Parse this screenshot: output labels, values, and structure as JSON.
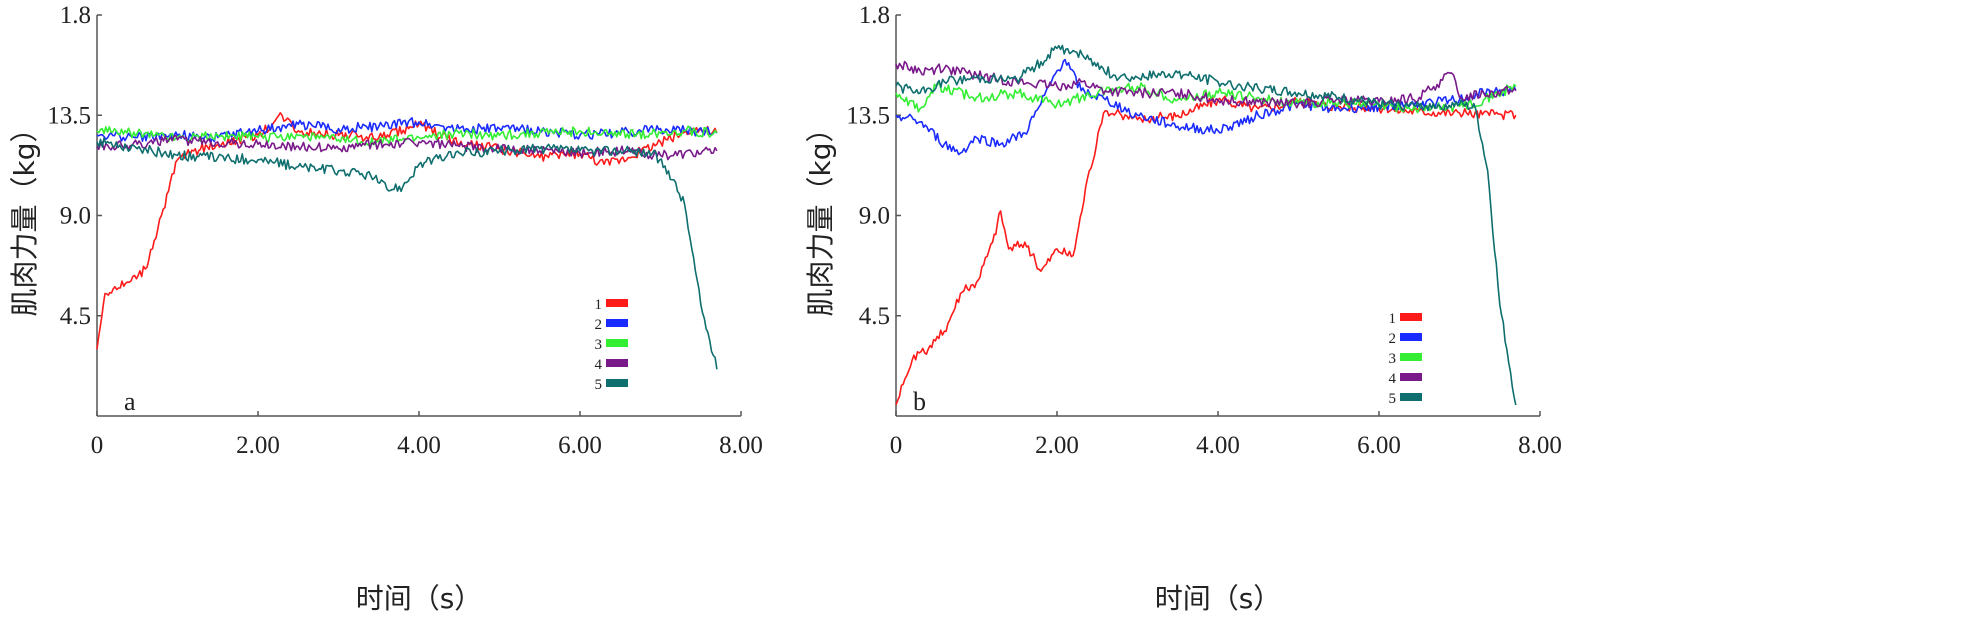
{
  "colors": {
    "1": "#ff1a1a",
    "2": "#1a2bff",
    "3": "#33ee33",
    "4": "#7a1a8a",
    "5": "#0f6e6e"
  },
  "chart_data": [
    {
      "type": "line",
      "panel_label": "a",
      "xlabel": "时间（s）",
      "ylabel": "肌肉力量（kg）",
      "xlim": [
        0,
        8
      ],
      "ylim": [
        0,
        18
      ],
      "x_ticks": [
        "0",
        "2.00",
        "4.00",
        "6.00",
        "8.00"
      ],
      "y_ticks": [
        "4.5",
        "9.0",
        "13.5",
        "1.8"
      ],
      "legend_position": "lower-right",
      "series": [
        {
          "name": "1",
          "x": [
            0.0,
            0.1,
            0.2,
            0.4,
            0.6,
            0.8,
            1.0,
            1.2,
            1.5,
            2.0,
            2.3,
            2.5,
            3.0,
            3.5,
            4.0,
            4.5,
            5.0,
            5.5,
            6.0,
            6.3,
            6.6,
            7.0,
            7.4,
            7.7
          ],
          "y": [
            3.0,
            5.5,
            5.7,
            6.0,
            6.6,
            9.0,
            11.5,
            11.9,
            12.2,
            12.6,
            13.5,
            12.8,
            12.6,
            12.5,
            13.1,
            12.2,
            12.0,
            11.6,
            11.8,
            11.3,
            11.6,
            12.3,
            12.9,
            12.7
          ]
        },
        {
          "name": "2",
          "x": [
            0.0,
            0.5,
            1.0,
            1.5,
            2.0,
            2.5,
            3.0,
            3.5,
            4.0,
            4.5,
            5.0,
            5.5,
            6.0,
            6.5,
            7.0,
            7.3,
            7.7
          ],
          "y": [
            12.6,
            12.5,
            12.6,
            12.5,
            12.8,
            13.1,
            12.9,
            13.0,
            13.2,
            12.9,
            12.9,
            12.8,
            12.6,
            12.7,
            12.9,
            12.8,
            12.7
          ]
        },
        {
          "name": "3",
          "x": [
            0.0,
            0.5,
            1.0,
            1.5,
            2.0,
            2.5,
            3.0,
            3.5,
            4.0,
            4.5,
            5.0,
            5.5,
            6.0,
            6.5,
            7.0,
            7.3,
            7.7
          ],
          "y": [
            12.8,
            12.7,
            12.5,
            12.6,
            12.5,
            12.6,
            12.4,
            12.3,
            12.5,
            12.7,
            12.6,
            12.7,
            12.8,
            12.6,
            12.7,
            12.8,
            12.7
          ]
        },
        {
          "name": "4",
          "x": [
            0.0,
            0.5,
            1.0,
            1.5,
            2.0,
            2.5,
            3.0,
            3.5,
            4.0,
            4.5,
            5.0,
            5.5,
            6.0,
            6.5,
            7.0,
            7.3,
            7.7
          ],
          "y": [
            12.1,
            12.2,
            12.4,
            12.3,
            12.2,
            12.1,
            12.0,
            12.2,
            12.3,
            12.1,
            12.0,
            11.9,
            11.8,
            11.9,
            11.7,
            11.8,
            11.9
          ]
        },
        {
          "name": "5",
          "x": [
            0.0,
            0.5,
            1.0,
            1.5,
            2.0,
            2.5,
            3.0,
            3.4,
            3.6,
            3.8,
            4.0,
            4.5,
            5.0,
            5.5,
            6.0,
            6.5,
            6.9,
            7.1,
            7.3,
            7.5,
            7.7
          ],
          "y": [
            12.3,
            12.0,
            11.7,
            11.6,
            11.5,
            11.2,
            11.0,
            10.8,
            10.2,
            10.3,
            11.3,
            11.8,
            11.9,
            12.0,
            11.9,
            11.9,
            11.8,
            11.0,
            9.5,
            5.0,
            2.1
          ]
        }
      ]
    },
    {
      "type": "line",
      "panel_label": "b",
      "xlabel": "时间（s）",
      "ylabel": "肌肉力量（kg）",
      "xlim": [
        0,
        8
      ],
      "ylim": [
        0,
        18
      ],
      "x_ticks": [
        "0",
        "2.00",
        "4.00",
        "6.00",
        "8.00"
      ],
      "y_ticks": [
        "4.5",
        "9.0",
        "13.5",
        "1.8"
      ],
      "legend_position": "lower-right",
      "series": [
        {
          "name": "1",
          "x": [
            0.0,
            0.2,
            0.4,
            0.6,
            0.8,
            1.0,
            1.2,
            1.3,
            1.4,
            1.6,
            1.8,
            2.0,
            2.2,
            2.4,
            2.6,
            2.8,
            3.0,
            3.5,
            4.0,
            4.5,
            5.0,
            5.5,
            6.0,
            6.5,
            7.0,
            7.7
          ],
          "y": [
            0.5,
            2.5,
            3.0,
            3.8,
            5.5,
            6.0,
            7.8,
            9.2,
            7.5,
            7.8,
            6.5,
            7.5,
            7.2,
            11.0,
            13.7,
            13.5,
            13.3,
            13.5,
            14.2,
            13.8,
            14.1,
            13.9,
            13.8,
            13.7,
            13.6,
            13.5
          ]
        },
        {
          "name": "2",
          "x": [
            0.0,
            0.3,
            0.6,
            0.8,
            1.0,
            1.3,
            1.6,
            1.8,
            2.0,
            2.1,
            2.3,
            2.6,
            3.0,
            3.5,
            4.0,
            4.5,
            5.0,
            5.5,
            6.0,
            6.5,
            7.0,
            7.3,
            7.7
          ],
          "y": [
            13.5,
            13.2,
            12.2,
            11.8,
            12.5,
            12.2,
            12.7,
            14.0,
            15.5,
            16.0,
            14.6,
            14.2,
            13.5,
            13.0,
            12.8,
            13.5,
            14.0,
            13.8,
            13.9,
            14.0,
            14.2,
            14.5,
            14.6
          ]
        },
        {
          "name": "3",
          "x": [
            0.0,
            0.3,
            0.5,
            1.0,
            1.5,
            2.0,
            2.3,
            2.6,
            3.0,
            3.5,
            4.0,
            4.5,
            5.0,
            5.5,
            6.0,
            6.5,
            7.0,
            7.3,
            7.7
          ],
          "y": [
            14.5,
            13.8,
            14.8,
            14.3,
            14.5,
            14.0,
            14.3,
            14.6,
            14.8,
            14.2,
            14.5,
            14.3,
            14.0,
            14.1,
            13.9,
            13.8,
            13.9,
            14.2,
            14.8
          ]
        },
        {
          "name": "4",
          "x": [
            0.0,
            0.3,
            0.6,
            1.0,
            1.5,
            2.0,
            2.3,
            2.6,
            3.0,
            3.5,
            4.0,
            4.5,
            5.0,
            5.5,
            6.0,
            6.5,
            6.9,
            7.0,
            7.3,
            7.7
          ],
          "y": [
            15.8,
            15.5,
            15.6,
            15.3,
            15.0,
            14.8,
            15.0,
            14.6,
            14.5,
            14.5,
            14.2,
            14.1,
            14.0,
            14.2,
            14.1,
            14.3,
            15.4,
            14.3,
            14.5,
            14.6
          ]
        },
        {
          "name": "5",
          "x": [
            0.0,
            0.3,
            0.6,
            1.0,
            1.5,
            1.8,
            2.0,
            2.2,
            2.4,
            2.7,
            3.0,
            3.5,
            4.0,
            4.5,
            5.0,
            5.5,
            6.0,
            6.5,
            7.0,
            7.2,
            7.35,
            7.5,
            7.7
          ],
          "y": [
            14.8,
            14.5,
            15.0,
            15.2,
            15.1,
            15.9,
            16.5,
            16.4,
            16.0,
            15.3,
            15.2,
            15.4,
            15.0,
            14.7,
            14.5,
            14.3,
            14.0,
            13.9,
            14.0,
            13.8,
            11.0,
            5.0,
            0.5
          ]
        }
      ]
    }
  ]
}
